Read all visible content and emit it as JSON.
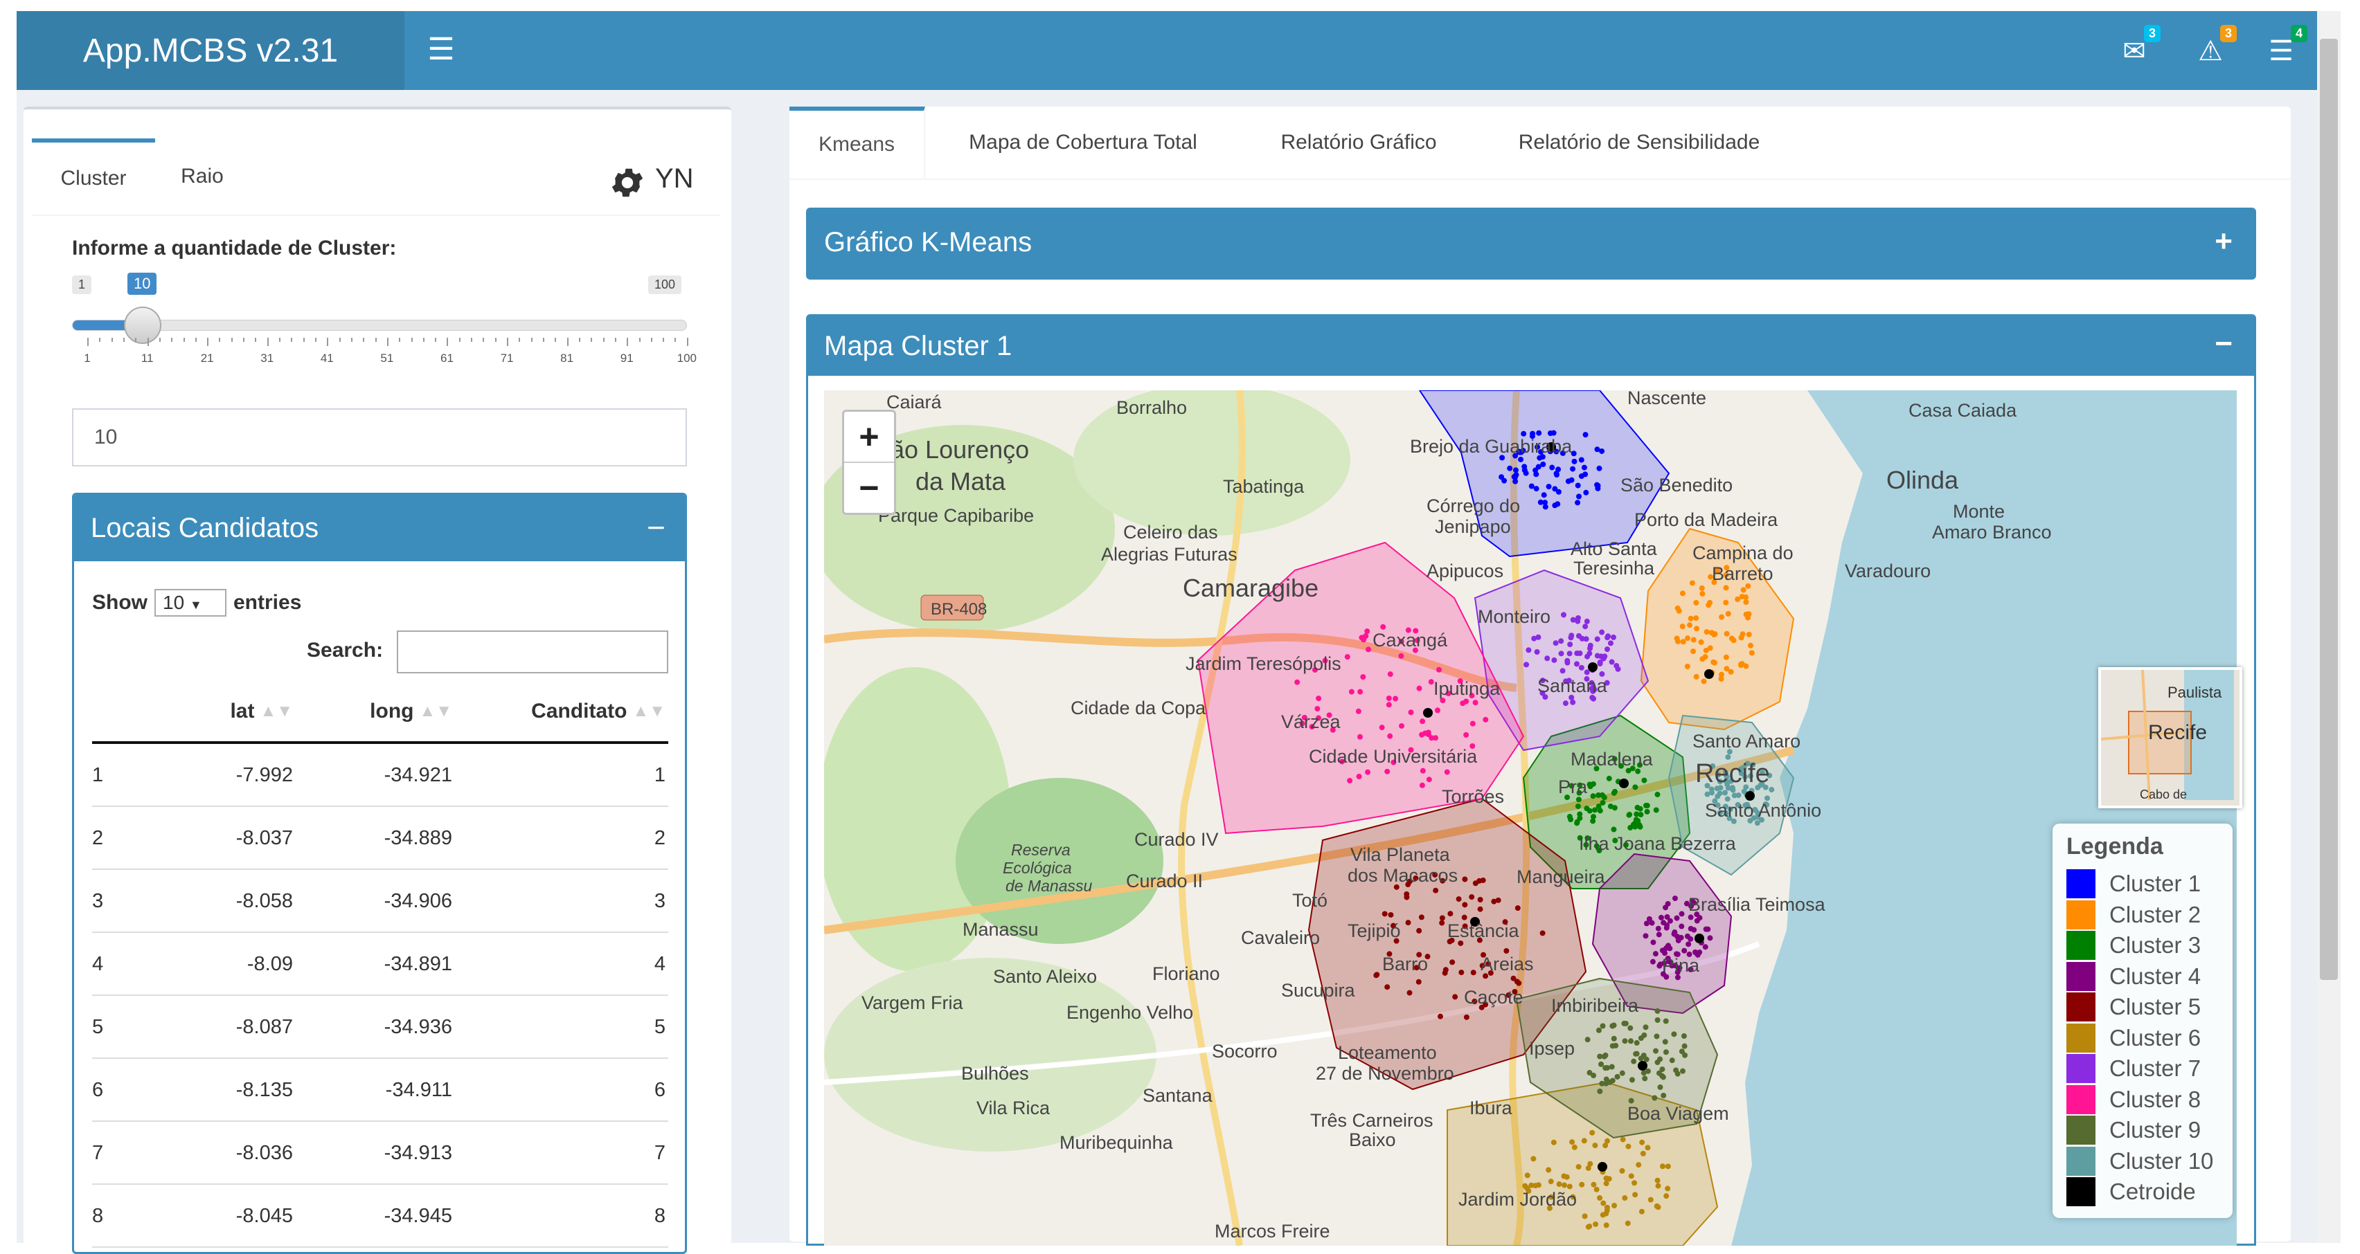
{
  "app": {
    "title": "App.MCBS v2.31",
    "notifications": [
      {
        "icon": "envelope-icon",
        "count": "3",
        "badge_color": "#00c0ef"
      },
      {
        "icon": "warning-icon",
        "count": "3",
        "badge_color": "#f39c12"
      },
      {
        "icon": "tasks-icon",
        "count": "4",
        "badge_color": "#00a65a"
      }
    ]
  },
  "sidebar_panel": {
    "tabs": [
      {
        "label": "Cluster"
      },
      {
        "label": "Raio"
      }
    ],
    "yn_label": "YN",
    "slider": {
      "label": "Informe a quantidade de Cluster:",
      "min": "1",
      "max": "100",
      "value": "10",
      "value_fraction": 0.0909,
      "tick_labels": [
        "1",
        "11",
        "21",
        "31",
        "41",
        "51",
        "61",
        "71",
        "81",
        "91",
        "100"
      ]
    },
    "numeric_input_value": "10"
  },
  "candidates": {
    "title": "Locais Candidatos",
    "collapse_symbol": "−",
    "show_label": "Show",
    "page_length": "10",
    "entries_label": "entries",
    "search_label": "Search:",
    "search_value": "",
    "columns": [
      "",
      "lat",
      "long",
      "Canditato"
    ],
    "rows": [
      [
        "1",
        "-7.992",
        "-34.921",
        "1"
      ],
      [
        "2",
        "-8.037",
        "-34.889",
        "2"
      ],
      [
        "3",
        "-8.058",
        "-34.906",
        "3"
      ],
      [
        "4",
        "-8.09",
        "-34.891",
        "4"
      ],
      [
        "5",
        "-8.087",
        "-34.936",
        "5"
      ],
      [
        "6",
        "-8.135",
        "-34.911",
        "6"
      ],
      [
        "7",
        "-8.036",
        "-34.913",
        "7"
      ],
      [
        "8",
        "-8.045",
        "-34.945",
        "8"
      ]
    ]
  },
  "main_tabs": [
    {
      "label": "Kmeans"
    },
    {
      "label": "Mapa de Cobertura Total"
    },
    {
      "label": "Relatório Gráfico"
    },
    {
      "label": "Relatório de Sensibilidade"
    }
  ],
  "panels": {
    "kmeans_chart": {
      "title": "Gráfico K-Means",
      "tool": "+"
    },
    "cluster_map": {
      "title": "Mapa Cluster 1",
      "tool": "−"
    }
  },
  "map": {
    "zoom_in": "+",
    "zoom_out": "−",
    "minimap_labels": {
      "paulista": "Paulista",
      "recife": "Recife",
      "cabo": "Cabo de"
    },
    "place_labels": {
      "caiara": "Caiará",
      "borralho": "Borralho",
      "nascente": "Nascente",
      "casa_caiada": "Casa Caiada",
      "sao_lourenco": "São Lourenço",
      "da_mata": "da Mata",
      "parque_capibaribe": "Parque Capibaribe",
      "tabatinga": "Tabatinga",
      "brejo_guabiraba": "Brejo da Guabiraba",
      "sao_benedito": "São Benedito",
      "olinda": "Olinda",
      "corrego_do": "Córrego do",
      "jenipapo": "Jenipapo",
      "porto_da_madeira": "Porto da Madeira",
      "monte": "Monte",
      "amaro_branco": "Amaro Branco",
      "celeiro_das": "Celeiro das",
      "alegrias_futuras": "Alegrias Futuras",
      "alto_santa": "Alto Santa",
      "teresinha": "Teresinha",
      "campina_do": "Campina do",
      "barreto": "Barreto",
      "camaragibe": "Camaragibe",
      "br408": "BR-408",
      "apipucos": "Apipucos",
      "varadouro": "Varadouro",
      "monteiro": "Monteiro",
      "caxanga": "Caxangá",
      "jardim_teresopolis": "Jardim Teresópolis",
      "iputinga": "Iputinga",
      "santana": "Santana",
      "cidade_da_copa": "Cidade da Copa",
      "varzea": "Várzea",
      "cidade_universitaria": "Cidade Universitária",
      "madalena": "Madalena",
      "santo_amaro": "Santo Amaro",
      "recife": "Recife",
      "torroes": "Torrões",
      "pra": "Pra",
      "santo_antonio": "Santo Antônio",
      "curado_iv": "Curado IV",
      "vila_planeta": "Vila Planeta",
      "dos_macacos": "dos Macacos",
      "ilha_joana_bezerra": "Ilha Joana Bezerra",
      "reserva": "Reserva",
      "ecologica": "Ecológica",
      "de_manassu": "de Manassu",
      "curado_ii": "Curado II",
      "mangueira": "Mangueira",
      "toto": "Totó",
      "brasilia_teimosa": "Brasília Teimosa",
      "manassu": "Manassu",
      "tejipio": "Tejipió",
      "estancia": "Estância",
      "cavaleiro": "Cavaleiro",
      "santo_aleixo": "Santo Aleixo",
      "floriano": "Floriano",
      "barro": "Barro",
      "areias": "Areias",
      "pina": "Pina",
      "vargem_fria": "Vargem Fria",
      "cacote": "Caçote",
      "sucupira": "Sucupira",
      "engenho_velho": "Engenho Velho",
      "imbiribeira": "Imbiribeira",
      "socorro": "Socorro",
      "loteamento": "Loteamento",
      "ipsep": "Ipsep",
      "bulhoes": "Bulhões",
      "27_de_novembro": "27 de Novembro",
      "santana2": "Santana",
      "vila_rica": "Vila Rica",
      "boa_viagem": "Boa Viagem",
      "tres_carneiros": "Três Carneiros",
      "ibura": "Ibura",
      "muribequinha": "Muribequinha",
      "baixo": "Baixo",
      "jardim_jordao": "Jardim Jordão",
      "marcos_freire": "Marcos Freire"
    },
    "legend": {
      "title": "Legenda",
      "items": [
        {
          "label": "Cluster 1",
          "color": "#0000ff"
        },
        {
          "label": "Cluster 2",
          "color": "#ff8c00"
        },
        {
          "label": "Cluster 3",
          "color": "#008000"
        },
        {
          "label": "Cluster 4",
          "color": "#800080"
        },
        {
          "label": "Cluster 5",
          "color": "#8b0000"
        },
        {
          "label": "Cluster 6",
          "color": "#b8860b"
        },
        {
          "label": "Cluster 7",
          "color": "#8a2be2"
        },
        {
          "label": "Cluster 8",
          "color": "#ff1493"
        },
        {
          "label": "Cluster 9",
          "color": "#556b2f"
        },
        {
          "label": "Cluster 10",
          "color": "#5f9ea0"
        },
        {
          "label": "Cetroide",
          "color": "#000000"
        }
      ]
    }
  }
}
